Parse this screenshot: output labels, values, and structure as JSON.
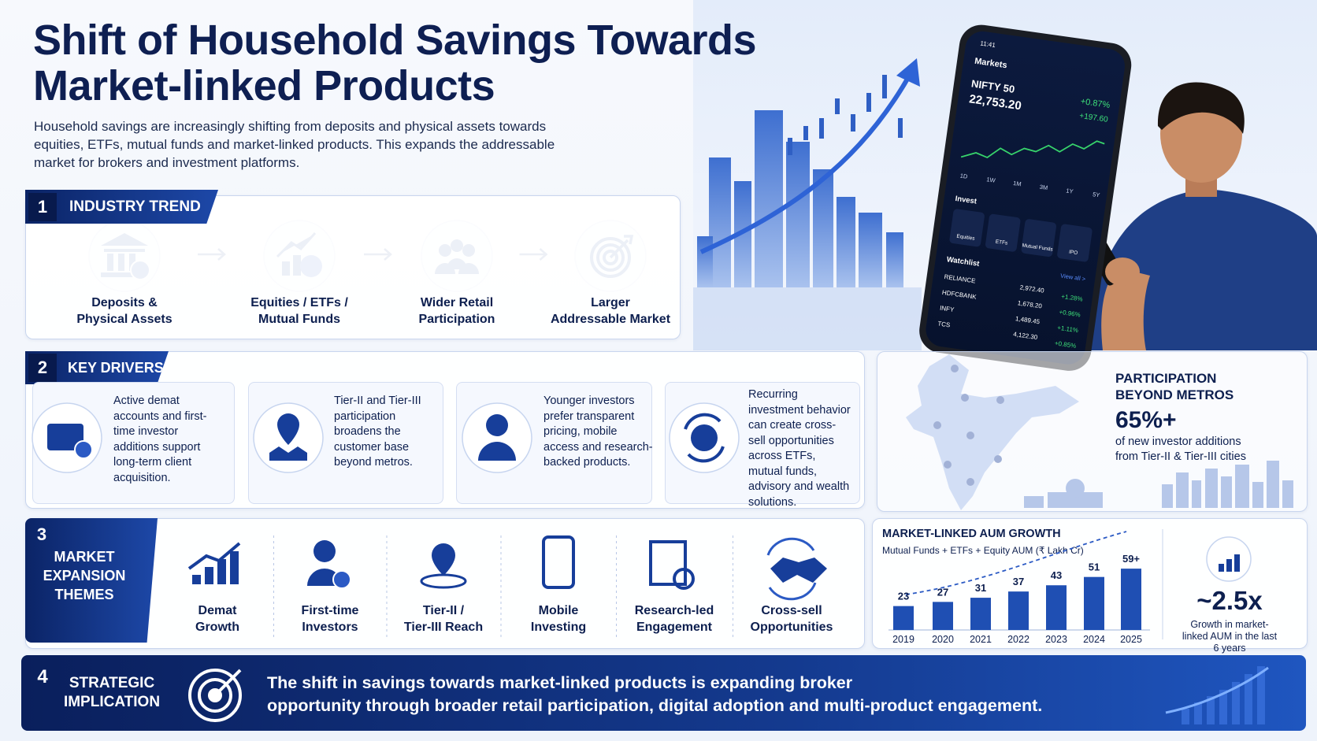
{
  "header": {
    "title_lines": [
      "Shift of Household Savings Towards",
      "Market-linked Products"
    ],
    "intro_lines": [
      "Household savings are increasingly shifting from deposits and physical assets towards",
      "equities, ETFs, mutual funds and market-linked products. This expands the addressable",
      "market for brokers and investment platforms."
    ]
  },
  "industry_trend": {
    "number": "1",
    "title": "INDUSTRY TREND",
    "steps": [
      [
        "Deposits &",
        "Physical Assets"
      ],
      [
        "Equities / ETFs /",
        "Mutual Funds"
      ],
      [
        "Wider Retail",
        "Participation"
      ],
      [
        "Larger",
        "Addressable Market"
      ]
    ]
  },
  "key_drivers": {
    "number": "2",
    "title": "KEY DRIVERS",
    "items": [
      "Active demat accounts and first-time investor additions support long-term client acquisition.",
      "Tier-II and Tier-III participation broadens the customer base beyond metros.",
      "Younger investors prefer transparent pricing, mobile access and research-backed products.",
      "Recurring investment behavior can create cross-sell opportunities across ETFs, mutual funds, advisory and wealth solutions."
    ]
  },
  "participation": {
    "title_lines": [
      "PARTICIPATION",
      "BEYOND METROS"
    ],
    "stat": "65%+",
    "caption": "of new investor additions from Tier-II & Tier-III cities"
  },
  "market_expansion": {
    "number": "3",
    "title_lines": [
      "MARKET",
      "EXPANSION",
      "THEMES"
    ],
    "themes": [
      [
        "Demat",
        "Growth"
      ],
      [
        "First-time",
        "Investors"
      ],
      [
        "Tier-II /",
        "Tier-III Reach"
      ],
      [
        "Mobile",
        "Investing"
      ],
      [
        "Research-led",
        "Engagement"
      ],
      [
        "Cross-sell",
        "Opportunities"
      ]
    ]
  },
  "chart_data": {
    "type": "bar",
    "title": "MARKET-LINKED AUM GROWTH",
    "subtitle": "Mutual Funds + ETFs + Equity AUM (₹ Lakh Cr)",
    "categories": [
      "2019",
      "2020",
      "2021",
      "2022",
      "2023",
      "2024",
      "2025"
    ],
    "values": [
      23,
      27,
      31,
      37,
      43,
      51,
      59
    ],
    "value_labels": [
      "23",
      "27",
      "31",
      "37",
      "43",
      "51",
      "59+"
    ],
    "color": "#1f4fb3"
  },
  "aum_highlight": {
    "value": "~2.5x",
    "caption": "Growth in market-linked AUM in the last 6 years"
  },
  "strategic_implication": {
    "number": "4",
    "title_lines": [
      "STRATEGIC",
      "IMPLICATION"
    ],
    "text_lines": [
      "The shift in savings towards market-linked products is expanding broker",
      "opportunity through broader retail participation, digital adoption and multi-product engagement."
    ]
  },
  "phone": {
    "time": "11:41",
    "title": "Markets",
    "index": "NIFTY 50",
    "level": "22,753.20",
    "change_pct": "+0.87%",
    "change_pts": "+197.60",
    "ranges": [
      "1D",
      "1W",
      "1M",
      "3M",
      "1Y",
      "5Y"
    ],
    "invest_label": "Invest",
    "invest_items": [
      "Equities",
      "ETFs",
      "Mutual Funds",
      "IPO"
    ],
    "watchlist_label": "Watchlist",
    "view_all": "View all >",
    "watchlist": [
      [
        "RELIANCE",
        "2,972.40",
        "+1.28%"
      ],
      [
        "HDFCBANK",
        "1,678.20",
        "+0.96%"
      ],
      [
        "INFY",
        "1,489.45",
        "+1.11%"
      ],
      [
        "TCS",
        "4,122.30",
        "+0.85%"
      ]
    ]
  }
}
